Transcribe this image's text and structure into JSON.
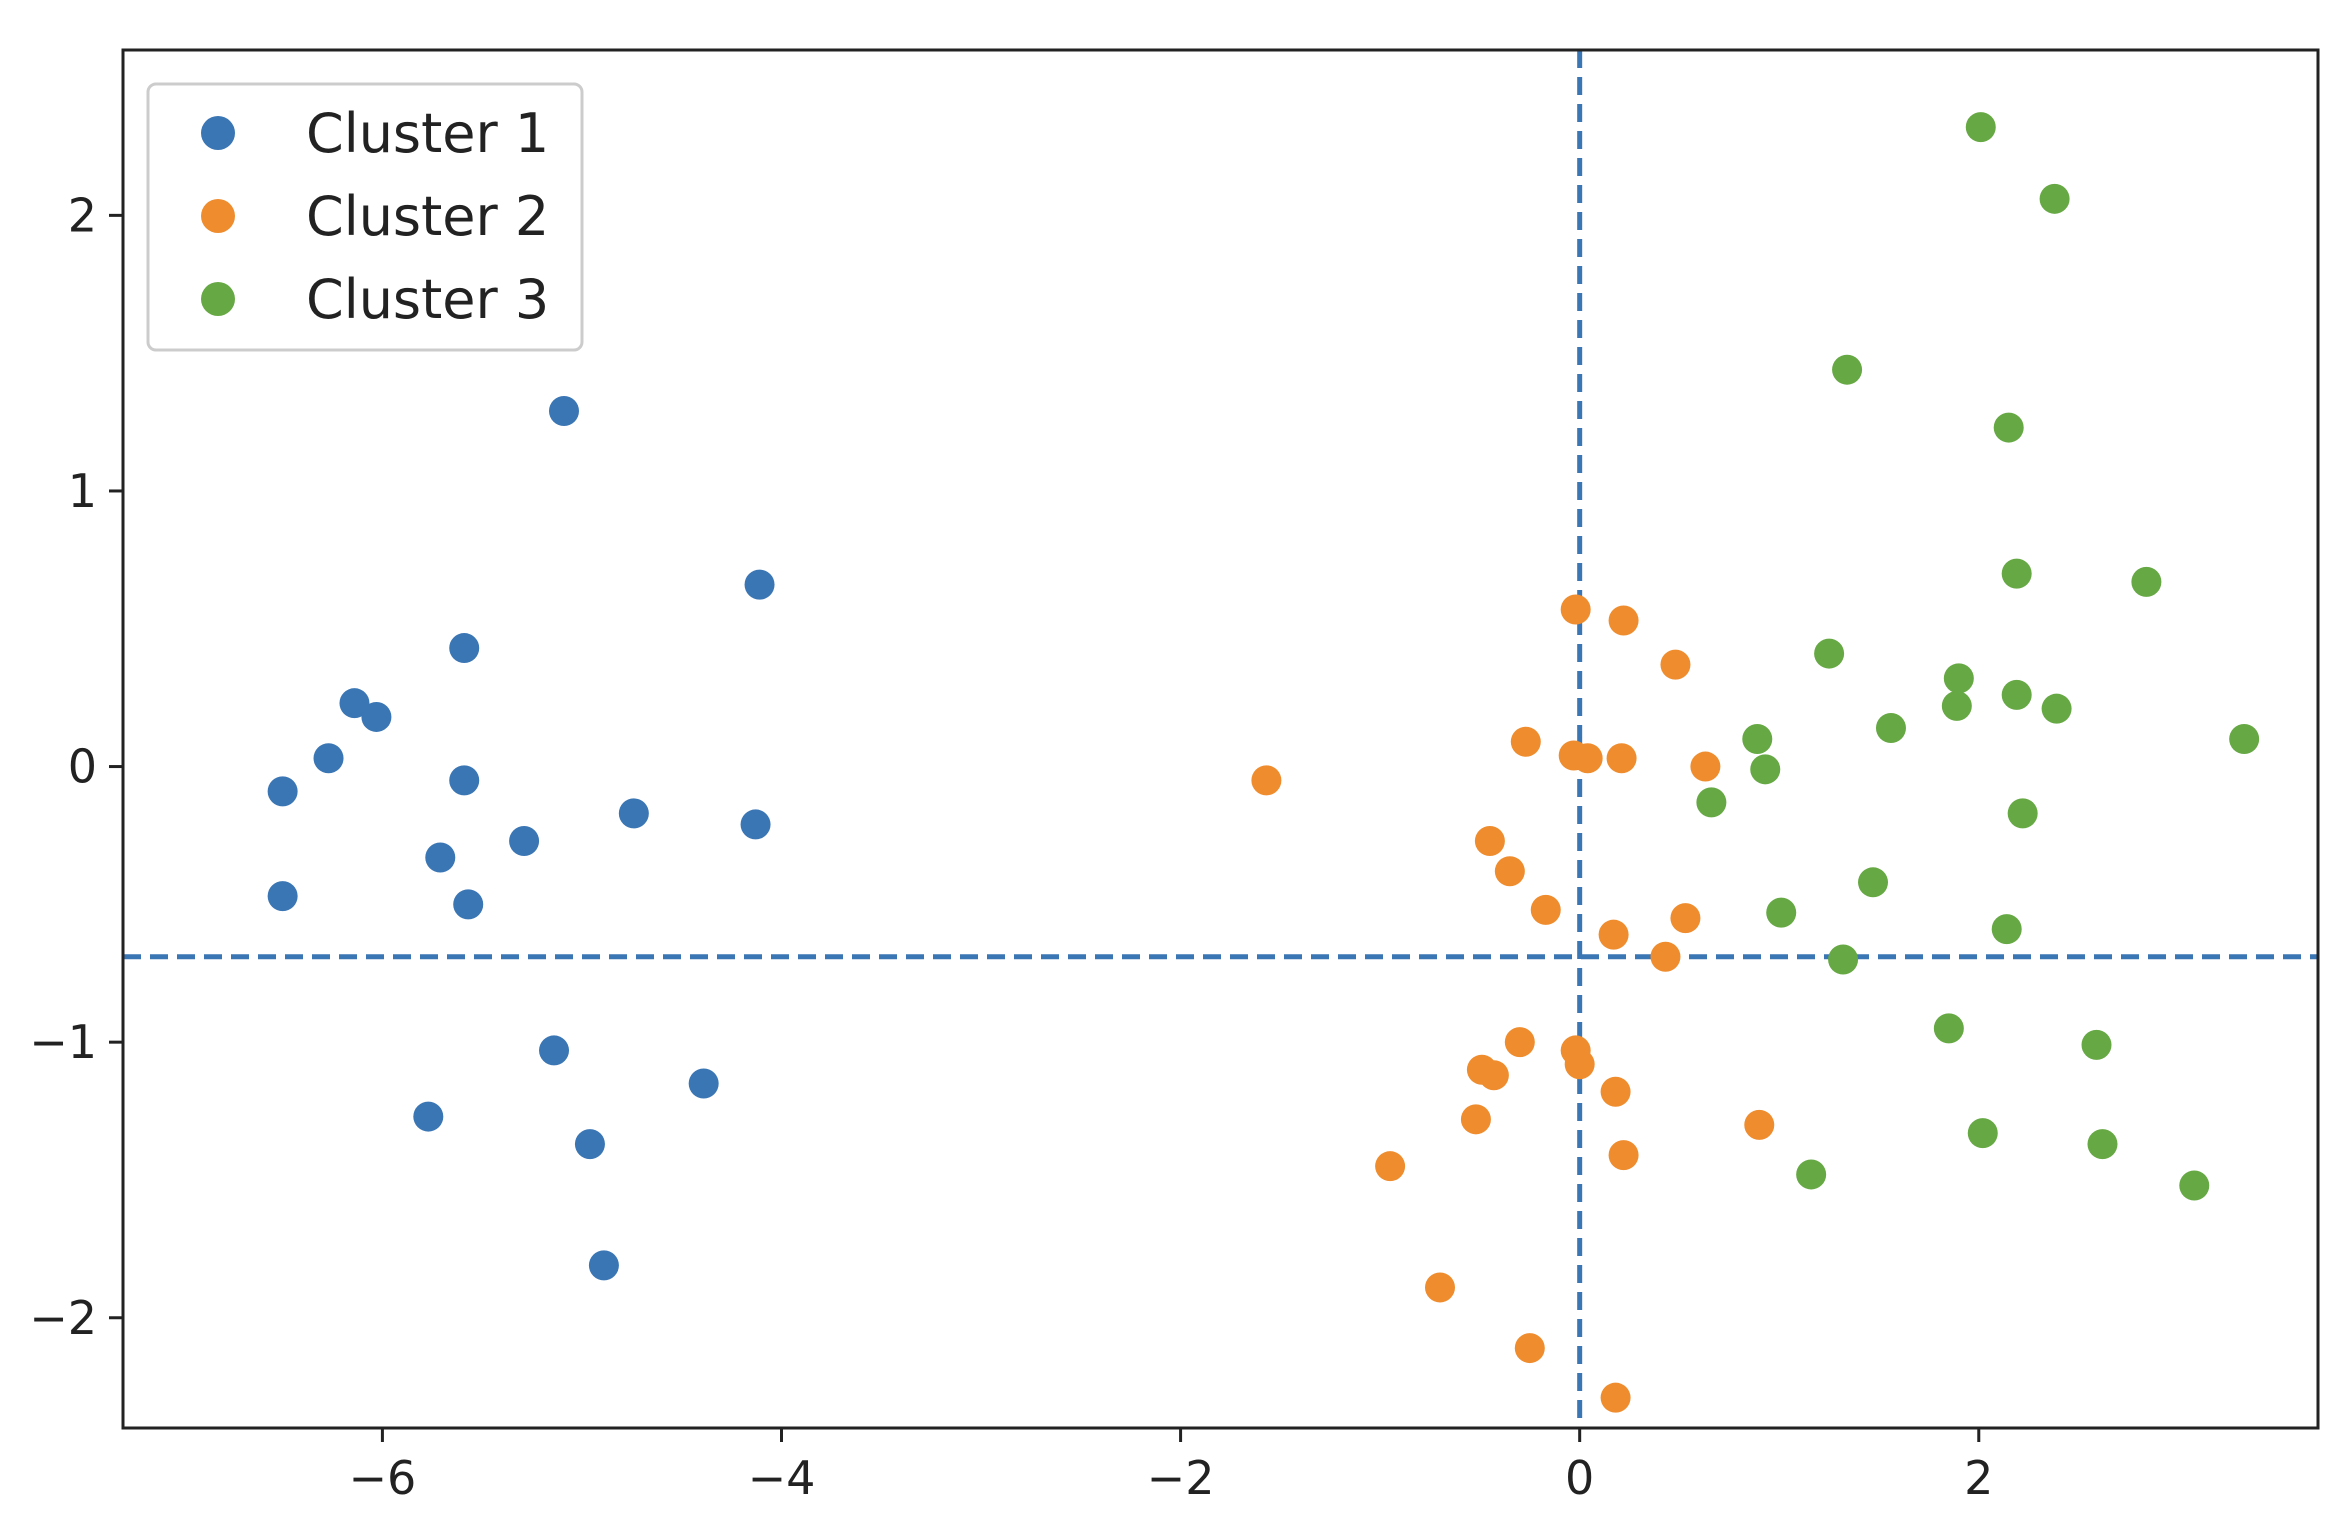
{
  "chart_data": {
    "type": "scatter",
    "title": "",
    "xlabel": "",
    "ylabel": "",
    "xlim": [
      -7.3,
      3.7
    ],
    "ylim": [
      -2.4,
      2.6
    ],
    "grid": false,
    "legend_position": "top-left",
    "x_ticks": [
      {
        "value": -6,
        "label": "−6"
      },
      {
        "value": -4,
        "label": "−4"
      },
      {
        "value": -2,
        "label": "−2"
      },
      {
        "value": 0,
        "label": "0"
      },
      {
        "value": 2,
        "label": "2"
      }
    ],
    "y_ticks": [
      {
        "value": -2,
        "label": "−2"
      },
      {
        "value": -1,
        "label": "−1"
      },
      {
        "value": 0,
        "label": "0"
      },
      {
        "value": 1,
        "label": "1"
      },
      {
        "value": 2,
        "label": "2"
      }
    ],
    "reference_lines": {
      "vertical_x": 0.0,
      "horizontal_y": -0.69,
      "color": "#3a75b4",
      "style": "dashed"
    },
    "series": [
      {
        "name": "Cluster 1",
        "color": "#3a75b4",
        "points": [
          [
            -5.09,
            1.29
          ],
          [
            -4.11,
            0.66
          ],
          [
            -5.59,
            0.43
          ],
          [
            -6.14,
            0.23
          ],
          [
            -6.03,
            0.18
          ],
          [
            -6.27,
            0.03
          ],
          [
            -6.5,
            -0.09
          ],
          [
            -5.59,
            -0.05
          ],
          [
            -4.74,
            -0.17
          ],
          [
            -4.13,
            -0.21
          ],
          [
            -5.29,
            -0.27
          ],
          [
            -5.71,
            -0.33
          ],
          [
            -5.57,
            -0.5
          ],
          [
            -6.5,
            -0.47
          ],
          [
            -5.14,
            -1.03
          ],
          [
            -4.39,
            -1.15
          ],
          [
            -5.77,
            -1.27
          ],
          [
            -4.96,
            -1.37
          ],
          [
            -4.89,
            -1.81
          ]
        ]
      },
      {
        "name": "Cluster 2",
        "color": "#ee8c2e",
        "points": [
          [
            -0.02,
            0.57
          ],
          [
            0.22,
            0.53
          ],
          [
            0.48,
            0.37
          ],
          [
            -0.27,
            0.09
          ],
          [
            -0.03,
            0.04
          ],
          [
            0.04,
            0.03
          ],
          [
            0.21,
            0.03
          ],
          [
            0.63,
            0.0
          ],
          [
            -1.57,
            -0.05
          ],
          [
            -0.45,
            -0.27
          ],
          [
            -0.35,
            -0.38
          ],
          [
            -0.17,
            -0.52
          ],
          [
            0.53,
            -0.55
          ],
          [
            0.17,
            -0.61
          ],
          [
            0.43,
            -0.69
          ],
          [
            -0.3,
            -1.0
          ],
          [
            -0.02,
            -1.03
          ],
          [
            -0.49,
            -1.1
          ],
          [
            -0.43,
            -1.12
          ],
          [
            0.0,
            -1.08
          ],
          [
            0.18,
            -1.18
          ],
          [
            -0.52,
            -1.28
          ],
          [
            0.9,
            -1.3
          ],
          [
            0.22,
            -1.41
          ],
          [
            -0.95,
            -1.45
          ],
          [
            -0.7,
            -1.89
          ],
          [
            -0.25,
            -2.11
          ],
          [
            0.18,
            -2.29
          ]
        ]
      },
      {
        "name": "Cluster 3",
        "color": "#66a844",
        "points": [
          [
            2.01,
            2.32
          ],
          [
            2.38,
            2.06
          ],
          [
            1.34,
            1.44
          ],
          [
            2.15,
            1.23
          ],
          [
            2.19,
            0.7
          ],
          [
            2.84,
            0.67
          ],
          [
            1.25,
            0.41
          ],
          [
            1.9,
            0.32
          ],
          [
            1.89,
            0.22
          ],
          [
            2.19,
            0.26
          ],
          [
            2.39,
            0.21
          ],
          [
            1.56,
            0.14
          ],
          [
            0.89,
            0.1
          ],
          [
            0.93,
            -0.01
          ],
          [
            3.33,
            0.1
          ],
          [
            0.66,
            -0.13
          ],
          [
            2.22,
            -0.17
          ],
          [
            1.47,
            -0.42
          ],
          [
            1.01,
            -0.53
          ],
          [
            2.14,
            -0.59
          ],
          [
            1.32,
            -0.7
          ],
          [
            1.85,
            -0.95
          ],
          [
            2.59,
            -1.01
          ],
          [
            2.02,
            -1.33
          ],
          [
            2.62,
            -1.37
          ],
          [
            1.16,
            -1.48
          ],
          [
            3.08,
            -1.52
          ]
        ]
      }
    ]
  }
}
